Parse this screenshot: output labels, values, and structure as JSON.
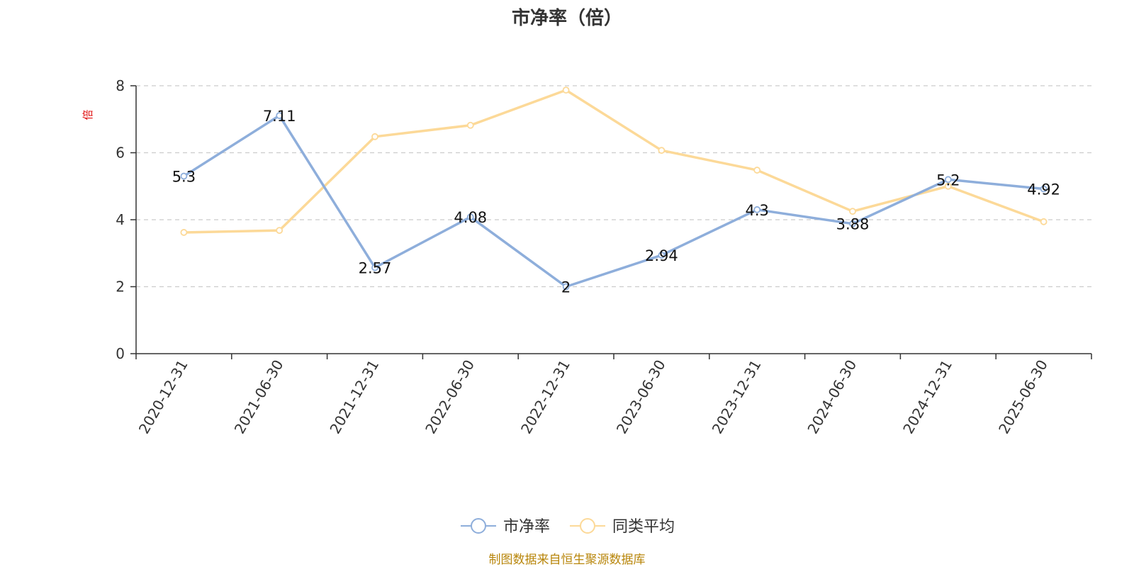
{
  "chart_data": {
    "type": "line",
    "title": "市净率（倍）",
    "ylabel": "倍",
    "categories": [
      "2020-12-31",
      "2021-06-30",
      "2021-12-31",
      "2022-06-30",
      "2022-12-31",
      "2023-06-30",
      "2023-12-31",
      "2024-06-30",
      "2024-12-31",
      "2025-06-30"
    ],
    "ylim": [
      0,
      8
    ],
    "yticks": [
      "0",
      "2",
      "4",
      "6",
      "8"
    ],
    "grid": true,
    "legend_position": "bottom",
    "series": [
      {
        "name": "市净率",
        "color": "#8eaedb",
        "values": [
          5.3,
          7.11,
          2.57,
          4.08,
          2,
          2.94,
          4.3,
          3.88,
          5.2,
          4.92
        ],
        "labels": [
          "5.3",
          "7.11",
          "2.57",
          "4.08",
          "2",
          "2.94",
          "4.3",
          "3.88",
          "5.2",
          "4.92"
        ]
      },
      {
        "name": "同类平均",
        "color": "#fcd998",
        "values": [
          3.62,
          3.68,
          6.48,
          6.82,
          7.87,
          6.07,
          5.48,
          4.25,
          5.0,
          3.94
        ]
      }
    ]
  },
  "source_text": "制图数据来自恒生聚源数据库"
}
